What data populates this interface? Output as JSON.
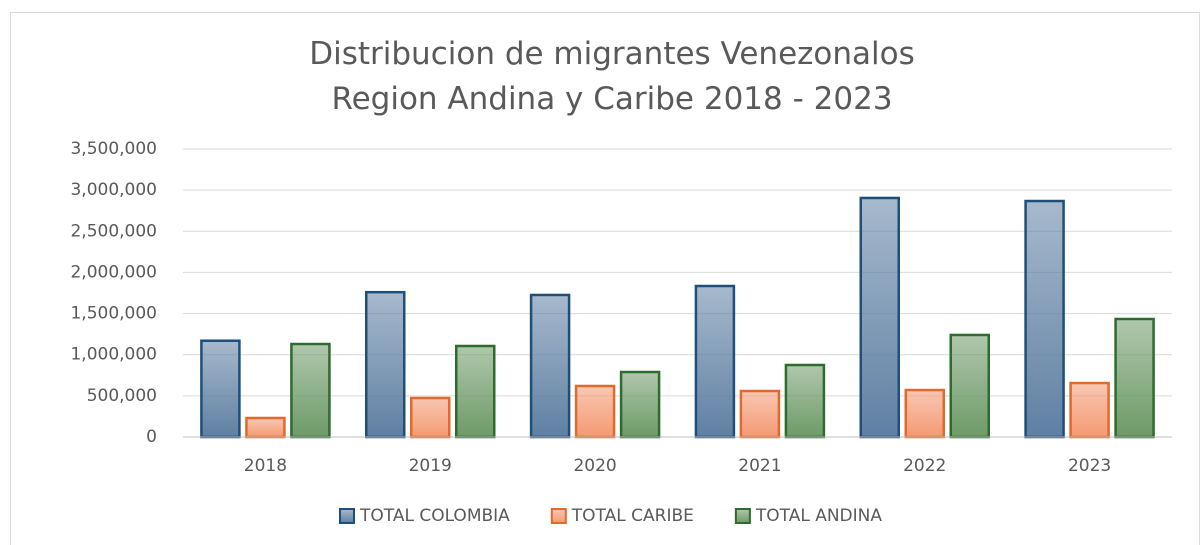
{
  "chart_data": {
    "type": "bar",
    "title": "Distribucion de migrantes Venezonalos Region Andina y Caribe 2018 - 2023",
    "categories": [
      "2018",
      "2019",
      "2020",
      "2021",
      "2022",
      "2023"
    ],
    "series": [
      {
        "name": "TOTAL COLOMBIA",
        "color": "#5f80a3",
        "border_color": "#1f4e79",
        "values": [
          1170000,
          1760000,
          1726000,
          1835000,
          2905000,
          2868000
        ]
      },
      {
        "name": "TOTAL CARIBE",
        "color": "#f49a73",
        "border_color": "#e0692c",
        "values": [
          231000,
          474000,
          620000,
          559000,
          571000,
          656000
        ]
      },
      {
        "name": "TOTAL ANDINA",
        "color": "#6e9a68",
        "border_color": "#2e6b2e",
        "values": [
          1130000,
          1106000,
          790000,
          875000,
          1240000,
          1434000
        ]
      }
    ],
    "ylim": [
      0,
      3500000
    ],
    "yticks": [
      0,
      {
        "value": 500000,
        "label": "500,000"
      },
      {
        "value": 1000000,
        "label": "1,000,000"
      },
      {
        "value": 1500000,
        "label": "1,500,000"
      },
      {
        "value": 2000000,
        "label": "2,000,000"
      },
      {
        "value": 2500000,
        "label": "2,500,000"
      },
      {
        "value": 3000000,
        "label": "3,000,000"
      },
      {
        "value": 3500000,
        "label": "3,500,000"
      }
    ],
    "grid": true,
    "legend": "bottom"
  }
}
